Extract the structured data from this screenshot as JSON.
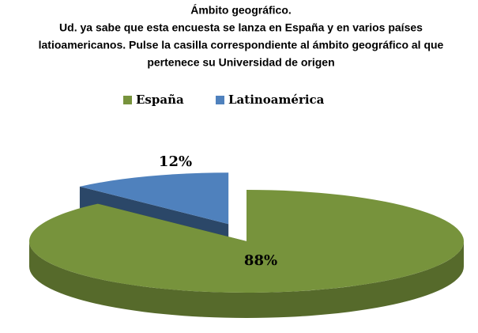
{
  "chart_data": {
    "type": "pie3d",
    "title": [
      "Ámbito geográfico.",
      "Ud. ya sabe que esta encuesta se lanza en España y en varios países",
      "latioamericanos. Pulse la casilla correspondiente al ámbito geográfico al que",
      "pertenece su Universidad de origen"
    ],
    "categories": [
      "España",
      "Latinoamérica"
    ],
    "values": [
      88,
      12
    ],
    "value_labels": [
      "88%",
      "12%"
    ],
    "colors": [
      "#77933c",
      "#4f81bd"
    ],
    "legend": "top"
  }
}
